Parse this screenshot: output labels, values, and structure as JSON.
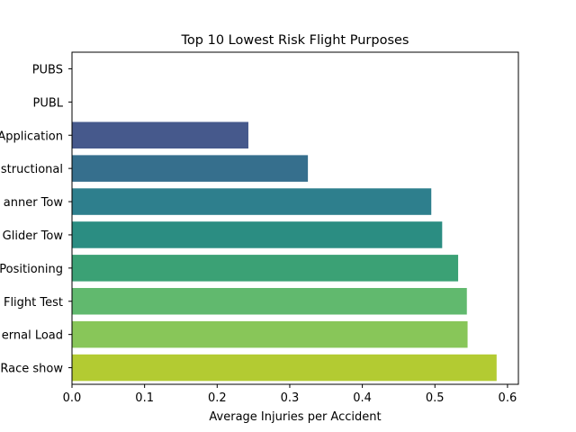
{
  "chart_data": {
    "type": "bar",
    "orientation": "horizontal",
    "title": "Top 10 Lowest Risk Flight Purposes",
    "xlabel": "Average Injuries per Accident",
    "ylabel": "",
    "categories": [
      "PUBS",
      "PUBL",
      "Application",
      "nstructional",
      "anner Tow",
      "Glider Tow",
      "Positioning",
      "Flight Test",
      "ernal Load",
      "Race show"
    ],
    "values": [
      0,
      0,
      0.243,
      0.325,
      0.495,
      0.51,
      0.532,
      0.544,
      0.545,
      0.585
    ],
    "colors": [
      "#440154",
      "#482878",
      "#46598c",
      "#366f8d",
      "#2e7f8d",
      "#2b8d82",
      "#3ba175",
      "#61b96e",
      "#88c659",
      "#b3cb32"
    ],
    "xlim": [
      0,
      0.615
    ],
    "xticks": [
      "0.0",
      "0.1",
      "0.2",
      "0.3",
      "0.4",
      "0.5",
      "0.6"
    ],
    "grid": false,
    "legend": "none"
  }
}
